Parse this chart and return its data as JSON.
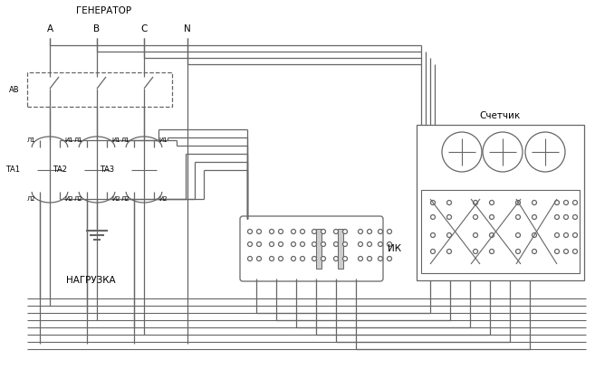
{
  "background_color": "#ffffff",
  "line_color": "#555555",
  "text_color": "#000000",
  "title_generator": "ГЕНЕРАТОР",
  "label_nagr": "НАГРУЗКА",
  "label_ik": "ИК",
  "label_schet": "Счетчик",
  "label_av": "АВ",
  "transformers": [
    "ТА1",
    "ТА2",
    "ТА3"
  ]
}
